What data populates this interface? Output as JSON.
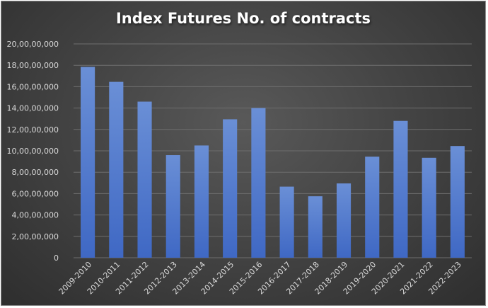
{
  "chart_data": {
    "type": "bar",
    "title": "Index Futures No. of contracts",
    "xlabel": "",
    "ylabel": "",
    "categories": [
      "2009-2010",
      "2010-2011",
      "2011-2012",
      "2012-2013",
      "2013-2014",
      "2014-2015",
      "2015-2016",
      "2016-2017",
      "2017-2018",
      "2018-2019",
      "2019-2020",
      "2020-2021",
      "2021-2022",
      "2022-2023"
    ],
    "values": [
      178500000,
      164500000,
      146000000,
      96000000,
      105000000,
      129500000,
      140000000,
      66500000,
      57500000,
      69500000,
      94500000,
      128000000,
      93500000,
      104500000
    ],
    "ylim": [
      0,
      200000000
    ],
    "ytick_values": [
      0,
      20000000,
      40000000,
      60000000,
      80000000,
      100000000,
      120000000,
      140000000,
      160000000,
      180000000,
      200000000
    ],
    "ytick_labels": [
      "0",
      "2,00,00,000",
      "4,00,00,000",
      "6,00,00,000",
      "8,00,00,000",
      "10,00,00,000",
      "12,00,00,000",
      "14,00,00,000",
      "16,00,00,000",
      "18,00,00,000",
      "20,00,00,000"
    ],
    "grid": true,
    "legend": "none",
    "colors": {
      "bar_top": "#6a8fd6",
      "bar_bottom": "#3f68c4",
      "grid": "#6e6e6e",
      "background": "#404040",
      "text": "#d9d9d9"
    }
  }
}
